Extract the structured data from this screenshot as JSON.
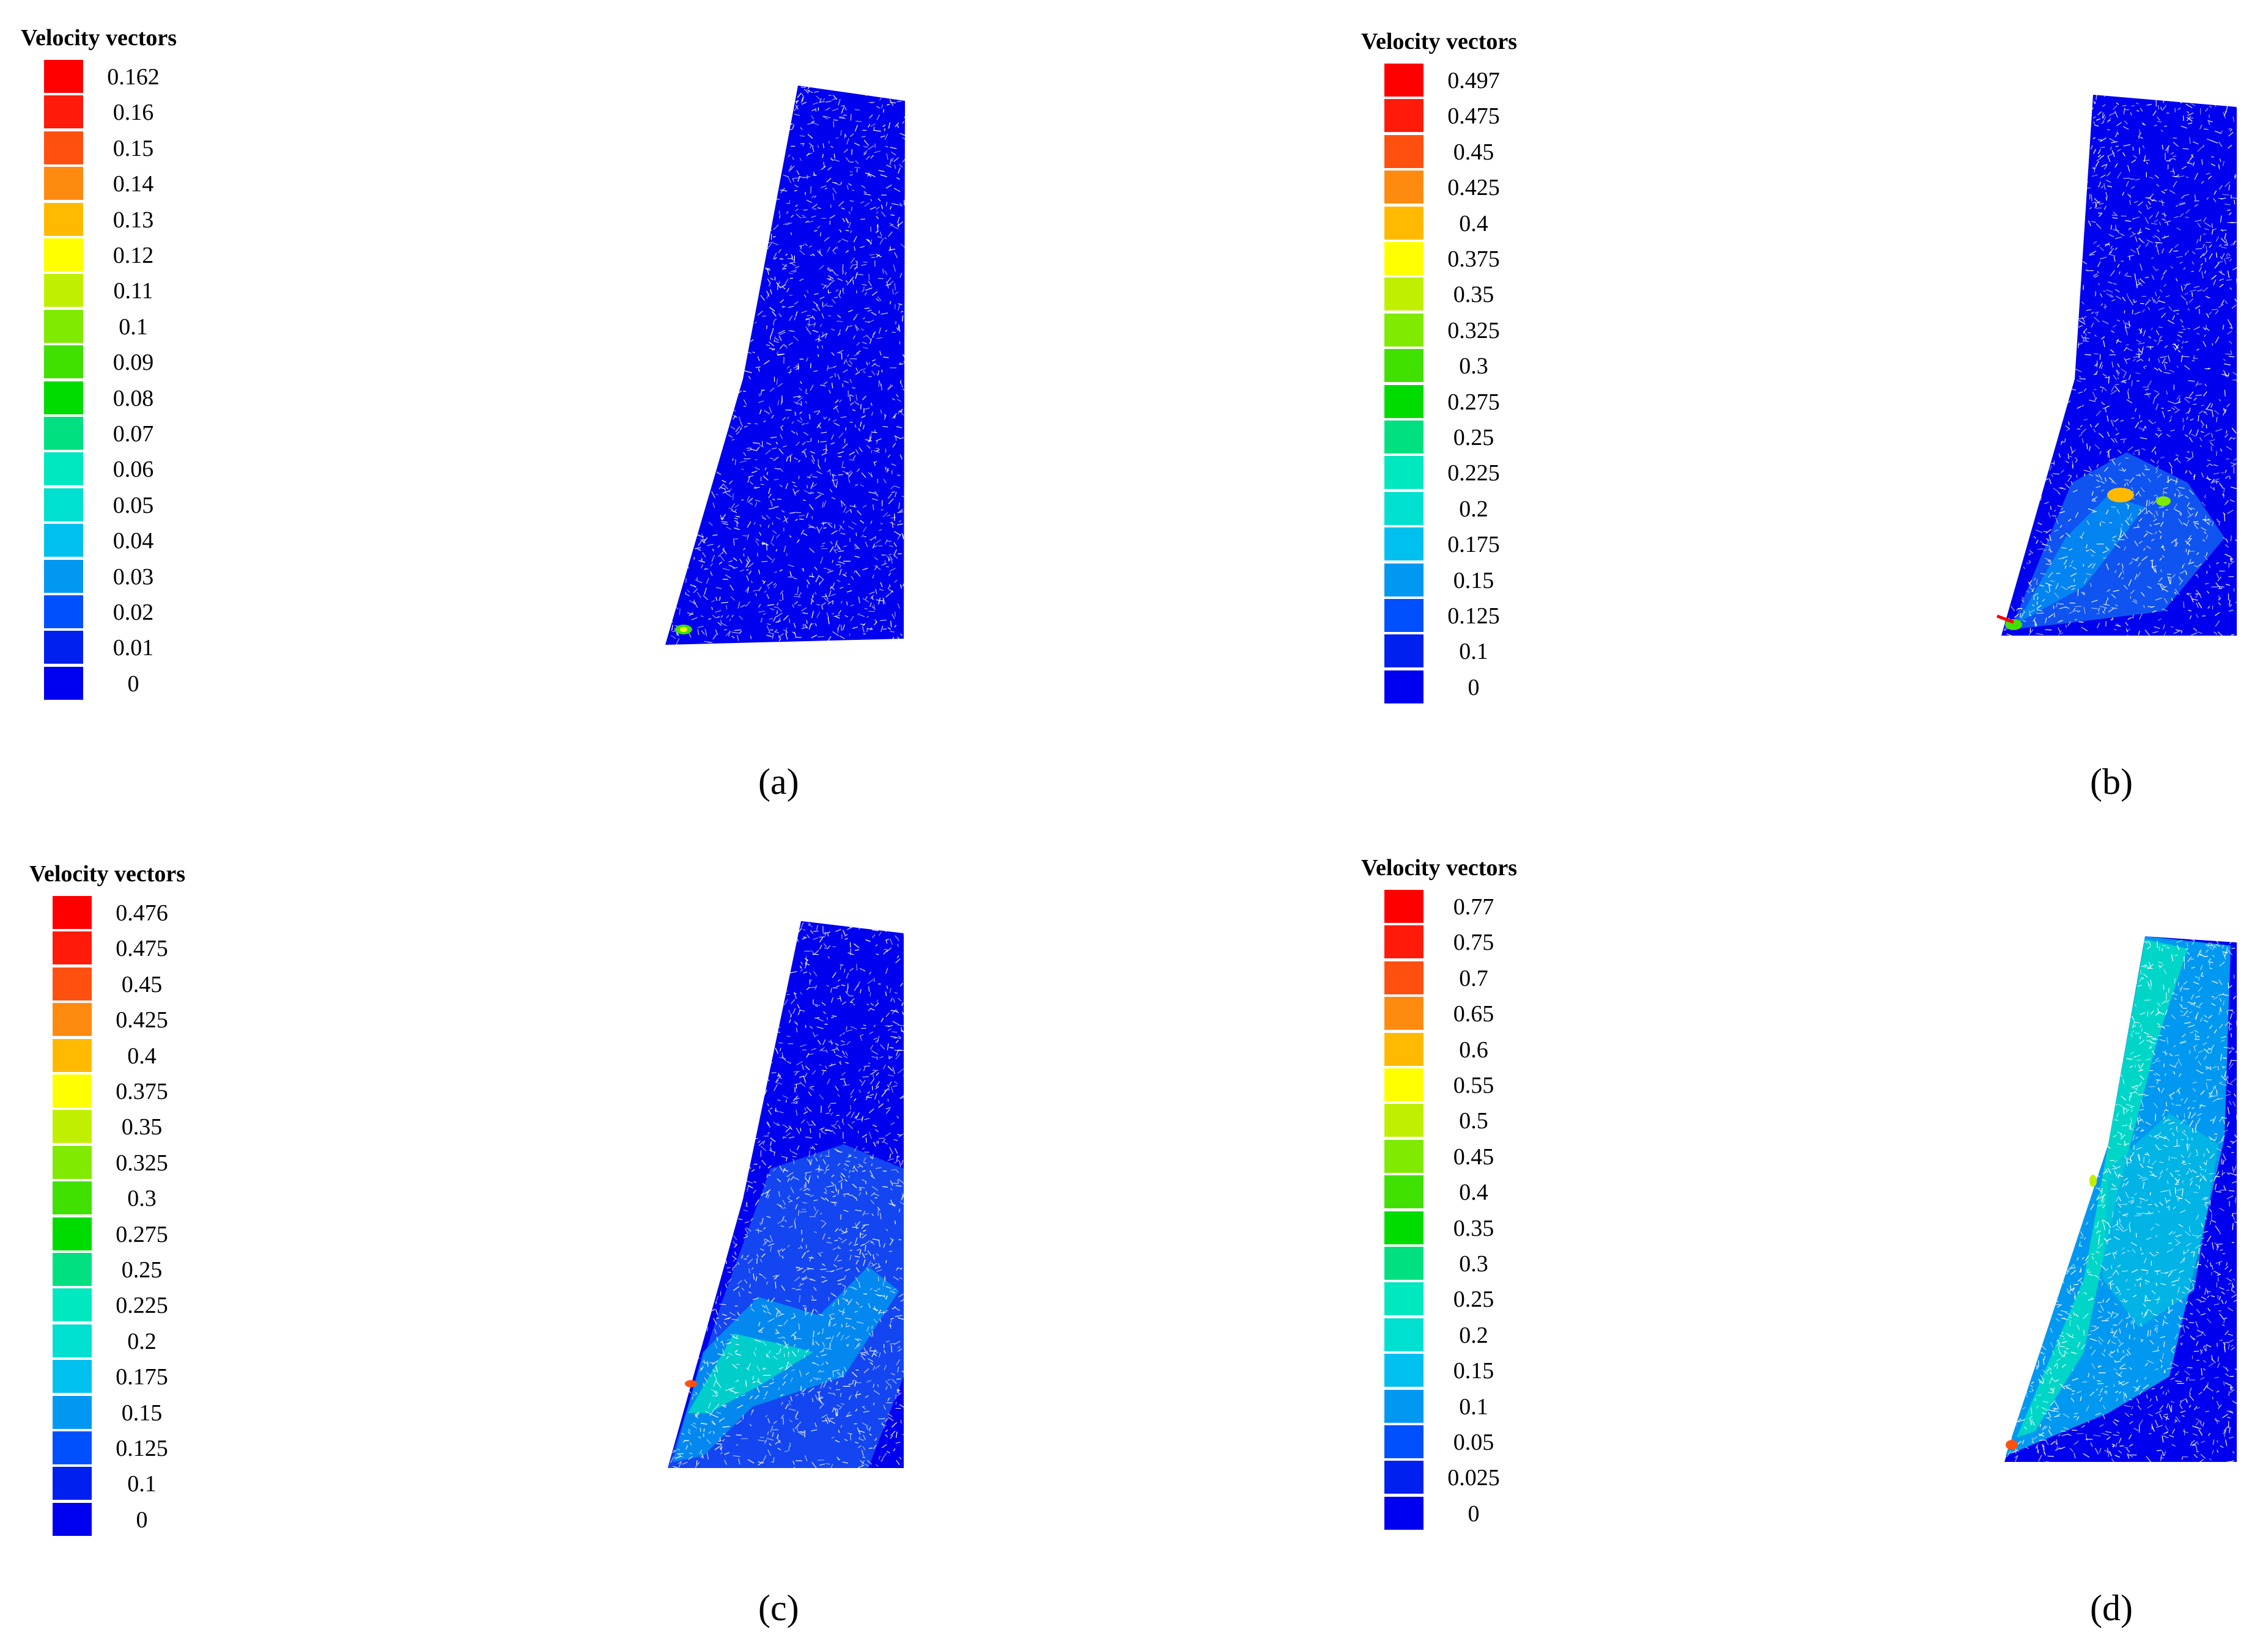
{
  "legend_title": "Velocity vectors",
  "colors": [
    "#ff0000",
    "#ff1a0a",
    "#ff5010",
    "#ff8a10",
    "#ffba00",
    "#ffff00",
    "#c0f000",
    "#80ea00",
    "#40e000",
    "#00dc00",
    "#00e080",
    "#00e8c0",
    "#00e0d0",
    "#00c0f0",
    "#0098f0",
    "#0050ff",
    "#0020f0",
    "#0000f0"
  ],
  "panels": [
    {
      "caption": "(a)",
      "legend_values": [
        "0.162",
        "0.16",
        "0.15",
        "0.14",
        "0.13",
        "0.12",
        "0.11",
        "0.1",
        "0.09",
        "0.08",
        "0.07",
        "0.06",
        "0.05",
        "0.04",
        "0.03",
        "0.02",
        "0.01",
        "0"
      ]
    },
    {
      "caption": "(b)",
      "legend_values": [
        "0.497",
        "0.475",
        "0.45",
        "0.425",
        "0.4",
        "0.375",
        "0.35",
        "0.325",
        "0.3",
        "0.275",
        "0.25",
        "0.225",
        "0.2",
        "0.175",
        "0.15",
        "0.125",
        "0.1",
        "0"
      ]
    },
    {
      "caption": "(c)",
      "legend_values": [
        "0.476",
        "0.475",
        "0.45",
        "0.425",
        "0.4",
        "0.375",
        "0.35",
        "0.325",
        "0.3",
        "0.275",
        "0.25",
        "0.225",
        "0.2",
        "0.175",
        "0.15",
        "0.125",
        "0.1",
        "0"
      ]
    },
    {
      "caption": "(d)",
      "legend_values": [
        "0.77",
        "0.75",
        "0.7",
        "0.65",
        "0.6",
        "0.55",
        "0.5",
        "0.45",
        "0.4",
        "0.35",
        "0.3",
        "0.25",
        "0.2",
        "0.15",
        "0.1",
        "0.05",
        "0.025",
        "0"
      ]
    }
  ]
}
